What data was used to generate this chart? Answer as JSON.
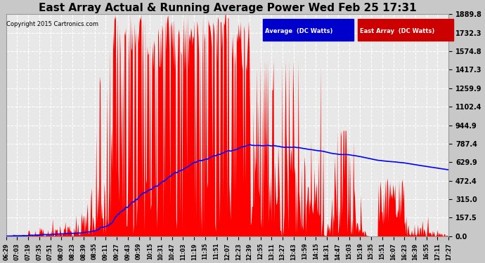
{
  "title": "East Array Actual & Running Average Power Wed Feb 25 17:31",
  "copyright": "Copyright 2015 Cartronics.com",
  "y_ticks": [
    0.0,
    157.5,
    315.0,
    472.4,
    629.9,
    787.4,
    944.9,
    1102.4,
    1259.9,
    1417.3,
    1574.8,
    1732.3,
    1889.8
  ],
  "ymax": 1889.8,
  "background_color": "#c8c8c8",
  "plot_bg_color": "#e8e8e8",
  "grid_color": "#ffffff",
  "bar_color": "#ff0000",
  "avg_color": "#0000ff",
  "legend_avg_bg": "#0000cc",
  "legend_east_bg": "#cc0000",
  "title_fontsize": 11,
  "tick_labels": [
    "06:29",
    "07:03",
    "07:19",
    "07:35",
    "07:51",
    "08:07",
    "08:23",
    "08:39",
    "08:55",
    "09:11",
    "09:27",
    "09:43",
    "09:59",
    "10:15",
    "10:31",
    "10:47",
    "11:03",
    "11:19",
    "11:35",
    "11:51",
    "12:07",
    "12:23",
    "12:39",
    "12:55",
    "13:11",
    "13:27",
    "13:43",
    "13:59",
    "14:15",
    "14:31",
    "14:47",
    "15:03",
    "15:19",
    "15:35",
    "15:51",
    "16:07",
    "16:23",
    "16:39",
    "16:55",
    "17:11",
    "17:27"
  ]
}
